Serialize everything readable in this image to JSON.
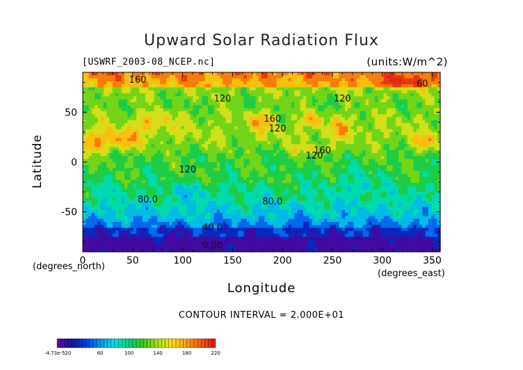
{
  "chart_data": {
    "type": "heatmap",
    "title": "Upward Solar Radiation Flux",
    "subtitle": "[USWRF_2003-08_NCEP.nc]",
    "units": "(units:W/m^2)",
    "xlabel": "Longitude",
    "ylabel": "Latitude",
    "x_unit_label": "(degrees_north)",
    "x_unit_label_right": "(degrees_east)",
    "xlim": [
      0,
      358
    ],
    "ylim": [
      -90,
      90
    ],
    "x_ticks": [
      "0",
      "50",
      "100",
      "150",
      "200",
      "250",
      "300",
      "350"
    ],
    "x_tick_values": [
      0,
      50,
      100,
      150,
      200,
      250,
      300,
      350
    ],
    "y_ticks": [
      "50",
      "0",
      "-50"
    ],
    "y_tick_values": [
      50,
      0,
      -50
    ],
    "contour_interval_label": "CONTOUR INTERVAL = 2.000E+01",
    "contour_labels": [
      {
        "text": "160",
        "lon": 55,
        "lat": 82
      },
      {
        "text": "120",
        "lon": 140,
        "lat": 63
      },
      {
        "text": "120",
        "lon": 260,
        "lat": 63
      },
      {
        "text": "160",
        "lon": 190,
        "lat": 43
      },
      {
        "text": "120",
        "lon": 195,
        "lat": 33
      },
      {
        "text": "160",
        "lon": 240,
        "lat": 11
      },
      {
        "text": "120",
        "lon": 232,
        "lat": 6
      },
      {
        "text": "120",
        "lon": 105,
        "lat": -8
      },
      {
        "text": "60",
        "lon": 340,
        "lat": 78
      },
      {
        "text": "80.0",
        "lon": 65,
        "lat": -38
      },
      {
        "text": "80.0",
        "lon": 190,
        "lat": -40
      },
      {
        "text": "40.0",
        "lon": 130,
        "lat": -66
      },
      {
        "text": "0.00",
        "lon": 130,
        "lat": -84
      }
    ],
    "colorbar": {
      "min_label": "-4.73e-520",
      "tick_labels": [
        "60",
        "100",
        "140",
        "180",
        "220"
      ],
      "tick_values": [
        60,
        100,
        140,
        180,
        220
      ],
      "range": [
        0,
        220
      ]
    }
  }
}
